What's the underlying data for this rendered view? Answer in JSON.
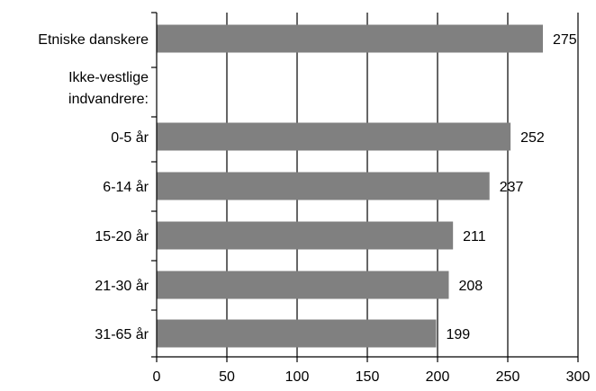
{
  "chart_data": {
    "type": "bar",
    "orientation": "horizontal",
    "categories": [
      "Etniske danskere",
      "Ikke-vestlige indvandrere:",
      "0-5 år",
      "6-14 år",
      "15-20 år",
      "21-30 år",
      "31-65 år"
    ],
    "values": [
      275,
      null,
      252,
      237,
      211,
      208,
      199
    ],
    "data_labels": [
      "275",
      "",
      "252",
      "237",
      "211",
      "208",
      "199"
    ],
    "xlim": [
      0,
      300
    ],
    "xticks": [
      0,
      50,
      100,
      150,
      200,
      250,
      300
    ],
    "title": "",
    "xlabel": "",
    "ylabel": "",
    "grid": "vertical",
    "legend": "none",
    "bar_color": "#808080"
  }
}
